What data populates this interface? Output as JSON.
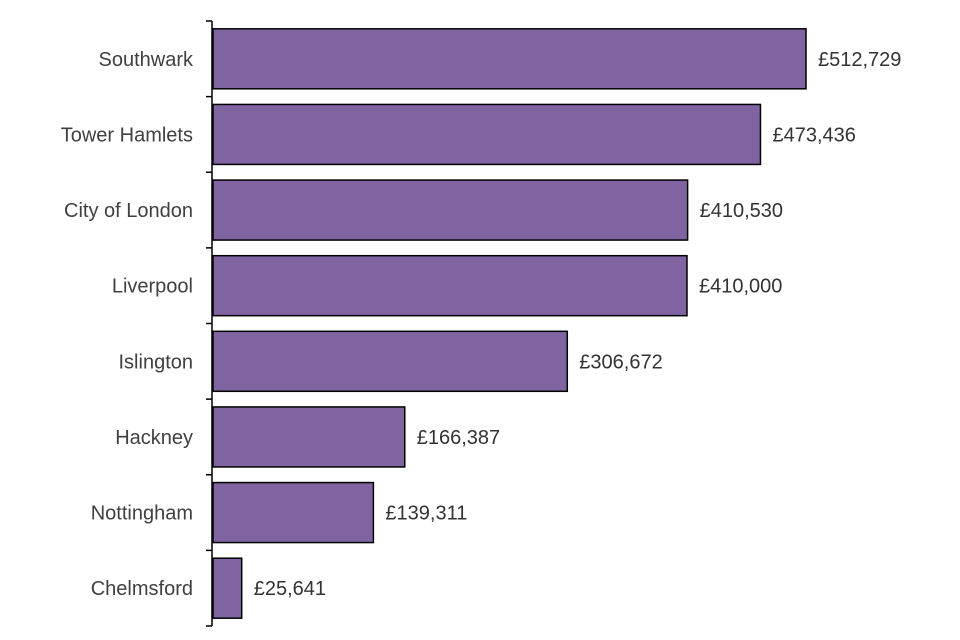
{
  "chart_data": {
    "type": "bar",
    "orientation": "horizontal",
    "title": "",
    "xlabel": "",
    "ylabel": "",
    "categories": [
      "Southwark",
      "Tower Hamlets",
      "City of London",
      "Liverpool",
      "Islington",
      "Hackney",
      "Nottingham",
      "Chelmsford"
    ],
    "values": [
      512729,
      473436,
      410530,
      410000,
      306672,
      166387,
      139311,
      25641
    ],
    "value_labels": [
      "£512,729",
      "£473,436",
      "£410,530",
      "£410,000",
      "£306,672",
      "£166,387",
      "£139,311",
      "£25,641"
    ],
    "xlim": [
      0,
      512729
    ],
    "grid": false,
    "legend": "none",
    "colors": {
      "bar_fill": "#8064A2",
      "bar_stroke": "#000000",
      "axis": "#000000"
    }
  }
}
